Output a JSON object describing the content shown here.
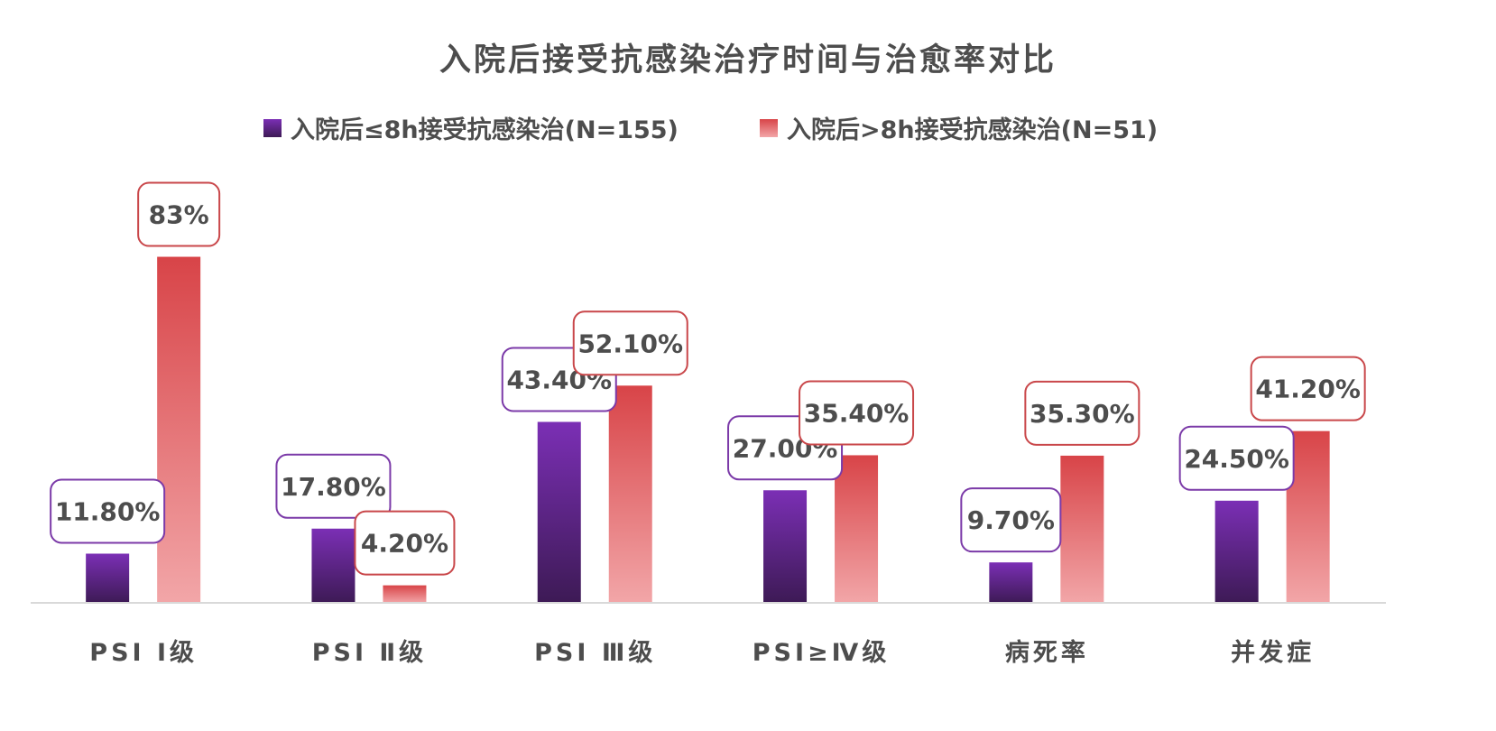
{
  "chart_data": {
    "type": "bar",
    "title": "入院后接受抗感染治疗时间与治愈率对比",
    "xlabel": "",
    "ylabel": "",
    "ylim": [
      0,
      100
    ],
    "grid": false,
    "legend_position": "top",
    "categories": [
      "PSI Ⅰ级",
      "PSI Ⅱ级",
      "PSI Ⅲ级",
      "PSI≥Ⅳ级",
      "病死率",
      "并发症"
    ],
    "series": [
      {
        "name": "入院后≤8h接受抗感染治(N=155)",
        "values": [
          11.8,
          17.8,
          43.4,
          27.0,
          9.7,
          24.5
        ],
        "labels": [
          "11.80%",
          "17.80%",
          "43.40%",
          "27.00%",
          "9.70%",
          "24.50%"
        ],
        "color_top": "#7b2fb5",
        "color_bottom": "#3d1a55",
        "border_color": "#7b3aa8"
      },
      {
        "name": "入院后>8h接受抗感染治(N=51)",
        "values": [
          83,
          4.2,
          52.1,
          35.4,
          35.3,
          41.2
        ],
        "labels": [
          "83%",
          "4.20%",
          "52.10%",
          "35.40%",
          "35.30%",
          "41.20%"
        ],
        "color_top": "#d84448",
        "color_bottom": "#f2a6a8",
        "border_color": "#c9474a"
      }
    ]
  }
}
